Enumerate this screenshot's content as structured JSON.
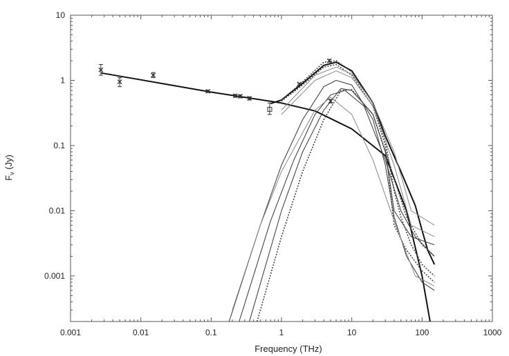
{
  "chart_data": {
    "type": "line",
    "title": "",
    "xlabel": "Frequency (THz)",
    "ylabel": "Fν (Jy)",
    "ylabel_parts": {
      "main": "F",
      "sub": "ν",
      "rest": " (Jy)"
    },
    "x_scale": "log",
    "y_scale": "log",
    "xlim": [
      0.001,
      1000
    ],
    "ylim": [
      0.0002,
      10
    ],
    "grid": false,
    "legend": "none",
    "x_ticks": [
      {
        "value": 0.001,
        "label": "0.001"
      },
      {
        "value": 0.01,
        "label": "0.01"
      },
      {
        "value": 0.1,
        "label": "0.1"
      },
      {
        "value": 1,
        "label": "1"
      },
      {
        "value": 10,
        "label": "10"
      },
      {
        "value": 100,
        "label": "100"
      },
      {
        "value": 1000,
        "label": "1000"
      }
    ],
    "y_ticks": [
      {
        "value": 10,
        "label": "10"
      },
      {
        "value": 1,
        "label": "1"
      },
      {
        "value": 0.1,
        "label": "0.1"
      },
      {
        "value": 0.01,
        "label": "0.01"
      },
      {
        "value": 0.001,
        "label": "0.001"
      }
    ],
    "colors": {
      "axis": "#555555",
      "line": "#111111",
      "model": "#444444",
      "model_light": "#888888",
      "points": "#333333"
    },
    "observations": [
      {
        "x": 0.0027,
        "y": 1.45,
        "yerr": [
          1.2,
          1.75
        ],
        "marker": "x"
      },
      {
        "x": 0.005,
        "y": 0.95,
        "yerr": [
          0.8,
          1.1
        ],
        "marker": "x"
      },
      {
        "x": 0.015,
        "y": 1.2,
        "yerr": [
          1.1,
          1.32
        ],
        "marker": "x"
      },
      {
        "x": 0.09,
        "y": 0.68,
        "yerr": [
          0.65,
          0.71
        ],
        "marker": "x"
      },
      {
        "x": 0.22,
        "y": 0.58,
        "yerr": [
          0.55,
          0.61
        ],
        "marker": "x"
      },
      {
        "x": 0.26,
        "y": 0.57,
        "yerr": [
          0.54,
          0.6
        ],
        "marker": "x"
      },
      {
        "x": 0.35,
        "y": 0.53,
        "yerr": [
          0.5,
          0.56
        ],
        "marker": "x"
      },
      {
        "x": 0.68,
        "y": 0.36,
        "yerr": [
          0.3,
          0.45
        ],
        "marker": "square"
      },
      {
        "x": 1.8,
        "y": 0.88,
        "yerr": [
          0.85,
          0.91
        ],
        "marker": "x"
      },
      {
        "x": 4.8,
        "y": 2.0,
        "yerr": [
          1.9,
          2.1
        ],
        "marker": "x"
      },
      {
        "x": 5.0,
        "y": 0.48,
        "yerr": [
          0.45,
          0.51
        ],
        "marker": "x"
      }
    ],
    "series": [
      {
        "style": "solid-thick",
        "points": [
          [
            0.0027,
            1.3
          ],
          [
            0.01,
            1.02
          ],
          [
            0.1,
            0.66
          ],
          [
            1,
            0.45
          ],
          [
            3,
            0.34
          ],
          [
            10,
            0.18
          ],
          [
            30,
            0.07
          ],
          [
            60,
            0.01
          ],
          [
            100,
            0.001
          ],
          [
            130,
            0.0002
          ]
        ]
      },
      {
        "style": "solid-thick",
        "points": [
          [
            0.7,
            0.44
          ],
          [
            1,
            0.5
          ],
          [
            2,
            0.9
          ],
          [
            4,
            1.7
          ],
          [
            6,
            1.9
          ],
          [
            10,
            1.4
          ],
          [
            20,
            0.45
          ],
          [
            30,
            0.14
          ],
          [
            50,
            0.04
          ],
          [
            80,
            0.012
          ],
          [
            100,
            0.005
          ],
          [
            120,
            0.0025
          ],
          [
            150,
            0.0015
          ]
        ]
      },
      {
        "style": "dotted",
        "points": [
          [
            1,
            0.5
          ],
          [
            2,
            0.95
          ],
          [
            4,
            1.9
          ],
          [
            6,
            2.0
          ],
          [
            10,
            1.35
          ],
          [
            20,
            0.45
          ],
          [
            30,
            0.12
          ],
          [
            40,
            0.02
          ],
          [
            50,
            0.008
          ],
          [
            70,
            0.003
          ],
          [
            100,
            0.0015
          ],
          [
            150,
            0.001
          ]
        ]
      },
      {
        "style": "dotted",
        "points": [
          [
            1,
            0.48
          ],
          [
            2,
            0.85
          ],
          [
            4,
            1.6
          ],
          [
            6,
            1.75
          ],
          [
            10,
            1.2
          ],
          [
            20,
            0.4
          ],
          [
            30,
            0.1
          ],
          [
            40,
            0.006
          ],
          [
            60,
            0.0025
          ],
          [
            100,
            0.0012
          ],
          [
            150,
            0.0008
          ]
        ]
      },
      {
        "style": "solid",
        "points": [
          [
            0.18,
            0.0002
          ],
          [
            0.5,
            0.006
          ],
          [
            1,
            0.05
          ],
          [
            2,
            0.25
          ],
          [
            4,
            0.8
          ],
          [
            6,
            1.0
          ],
          [
            10,
            0.85
          ],
          [
            20,
            0.25
          ],
          [
            30,
            0.05
          ],
          [
            40,
            0.008
          ],
          [
            60,
            0.002
          ],
          [
            100,
            0.0008
          ],
          [
            150,
            0.0006
          ]
        ]
      },
      {
        "style": "solid",
        "points": [
          [
            0.25,
            0.0002
          ],
          [
            0.7,
            0.007
          ],
          [
            1.5,
            0.06
          ],
          [
            3,
            0.3
          ],
          [
            5,
            0.6
          ],
          [
            8,
            0.7
          ],
          [
            15,
            0.4
          ],
          [
            30,
            0.06
          ],
          [
            50,
            0.01
          ],
          [
            80,
            0.004
          ],
          [
            150,
            0.002
          ]
        ]
      },
      {
        "style": "solid",
        "points": [
          [
            0.35,
            0.0002
          ],
          [
            1,
            0.01
          ],
          [
            2,
            0.08
          ],
          [
            4,
            0.35
          ],
          [
            7,
            0.75
          ],
          [
            10,
            0.7
          ],
          [
            20,
            0.3
          ],
          [
            30,
            0.08
          ],
          [
            40,
            0.01
          ],
          [
            70,
            0.004
          ],
          [
            150,
            0.003
          ]
        ]
      },
      {
        "style": "dotted",
        "points": [
          [
            0.45,
            0.0002
          ],
          [
            1,
            0.004
          ],
          [
            2,
            0.04
          ],
          [
            4,
            0.25
          ],
          [
            7,
            0.7
          ],
          [
            10,
            0.72
          ],
          [
            20,
            0.3
          ],
          [
            35,
            0.05
          ],
          [
            60,
            0.008
          ],
          [
            100,
            0.003
          ],
          [
            150,
            0.002
          ]
        ]
      },
      {
        "style": "solid-light",
        "points": [
          [
            0.2,
            0.0003
          ],
          [
            0.5,
            0.006
          ],
          [
            1,
            0.04
          ],
          [
            3,
            0.35
          ],
          [
            5,
            0.55
          ],
          [
            10,
            0.3
          ],
          [
            20,
            0.06
          ],
          [
            40,
            0.007
          ],
          [
            80,
            0.001
          ],
          [
            150,
            0.0007
          ]
        ]
      },
      {
        "style": "solid-light",
        "points": [
          [
            1,
            0.3
          ],
          [
            3,
            1.0
          ],
          [
            6,
            1.4
          ],
          [
            10,
            1.1
          ],
          [
            20,
            0.4
          ],
          [
            40,
            0.05
          ],
          [
            70,
            0.006
          ],
          [
            150,
            0.004
          ]
        ]
      },
      {
        "style": "solid-light",
        "points": [
          [
            1,
            0.35
          ],
          [
            3,
            1.2
          ],
          [
            6,
            1.6
          ],
          [
            10,
            1.25
          ],
          [
            20,
            0.45
          ],
          [
            40,
            0.08
          ],
          [
            70,
            0.01
          ],
          [
            150,
            0.006
          ]
        ]
      }
    ]
  }
}
